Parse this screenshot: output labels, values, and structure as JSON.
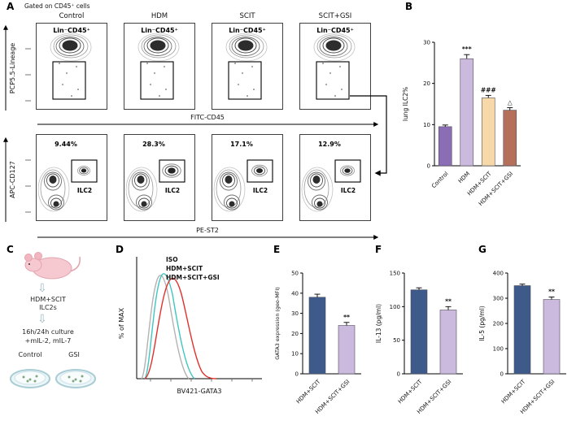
{
  "chart_data": [
    {
      "id": "B",
      "type": "bar",
      "ylabel": "lung ILC2%",
      "ylim": [
        0,
        30
      ],
      "yticks": [
        0,
        10,
        20,
        30
      ],
      "categories": [
        "Control",
        "HDM",
        "HDM+SCIT",
        "HDM+SCIT+GSI"
      ],
      "values": [
        9.5,
        26,
        16.5,
        13.5
      ],
      "errors": [
        0.4,
        1.0,
        0.6,
        0.6
      ],
      "annotations": [
        "",
        "***",
        "###",
        "△"
      ],
      "bar_colors": [
        "#8a6db4",
        "#cbbade",
        "#f6d8a9",
        "#b5705c"
      ],
      "grid": false,
      "legend_position": "none"
    },
    {
      "id": "E",
      "type": "bar",
      "ylabel": "GATA3 expression (geo-MFI)",
      "ylim": [
        0,
        50
      ],
      "yticks": [
        0,
        10,
        20,
        30,
        40,
        50
      ],
      "categories": [
        "HDM+SCIT",
        "HDM+SCIT+GSI"
      ],
      "values": [
        38,
        24
      ],
      "errors": [
        1.5,
        1.5
      ],
      "annotations": [
        "",
        "**"
      ],
      "bar_colors": [
        "#3d5a8b",
        "#cbbade"
      ],
      "grid": false
    },
    {
      "id": "F",
      "type": "bar",
      "ylabel": "IL-13 (pg/ml)",
      "ylim": [
        0,
        150
      ],
      "yticks": [
        0,
        50,
        100,
        150
      ],
      "categories": [
        "HDM+SCIT",
        "HDM+SCIT+GSI"
      ],
      "values": [
        125,
        95
      ],
      "errors": [
        3,
        5
      ],
      "annotations": [
        "",
        "**"
      ],
      "bar_colors": [
        "#3d5a8b",
        "#cbbade"
      ],
      "grid": false
    },
    {
      "id": "G",
      "type": "bar",
      "ylabel": "IL-5 (pg/ml)",
      "ylim": [
        0,
        400
      ],
      "yticks": [
        0,
        100,
        200,
        300,
        400
      ],
      "categories": [
        "HDM+SCIT",
        "HDM+SCIT+GSI"
      ],
      "values": [
        350,
        295
      ],
      "errors": [
        6,
        10
      ],
      "annotations": [
        "",
        "**"
      ],
      "bar_colors": [
        "#3d5a8b",
        "#cbbade"
      ],
      "grid": false
    }
  ],
  "panelA": {
    "label": "A",
    "gating_note": "Gated on CD45⁺ cells",
    "conditions": [
      "Control",
      "HDM",
      "SCIT",
      "SCIT+GSI"
    ],
    "top_gate_label": "Lin⁻CD45⁺",
    "top_y_axis": "PCP5.5-Lineage",
    "top_x_axis": "FITC-CD45",
    "bottom_percentages": [
      "9.44%",
      "28.3%",
      "17.1%",
      "12.9%"
    ],
    "bottom_gate_label": "ILC2",
    "bottom_y_axis": "APC-CD127",
    "bottom_x_axis": "PE-ST2"
  },
  "panelB": {
    "label": "B"
  },
  "panelC": {
    "label": "C",
    "cells_line1": "HDM+SCIT",
    "cells_line2": "ILC2s",
    "culture_line1": "16h/24h culture",
    "culture_line2": "+mIL-2,  mIL-7",
    "dish_labels": [
      "Control",
      "GSI"
    ]
  },
  "panelD": {
    "label": "D",
    "ylabel": "% of MAX",
    "xlabel": "BV421-GATA3",
    "legend": [
      {
        "name": "ISO",
        "color": "#a9a9a9"
      },
      {
        "name": "HDM+SCIT",
        "color": "#e53229"
      },
      {
        "name": "HDM+SCIT+GSI",
        "color": "#7cc32a"
      }
    ]
  },
  "panelE": {
    "label": "E"
  },
  "panelF": {
    "label": "F"
  },
  "panelG": {
    "label": "G"
  }
}
